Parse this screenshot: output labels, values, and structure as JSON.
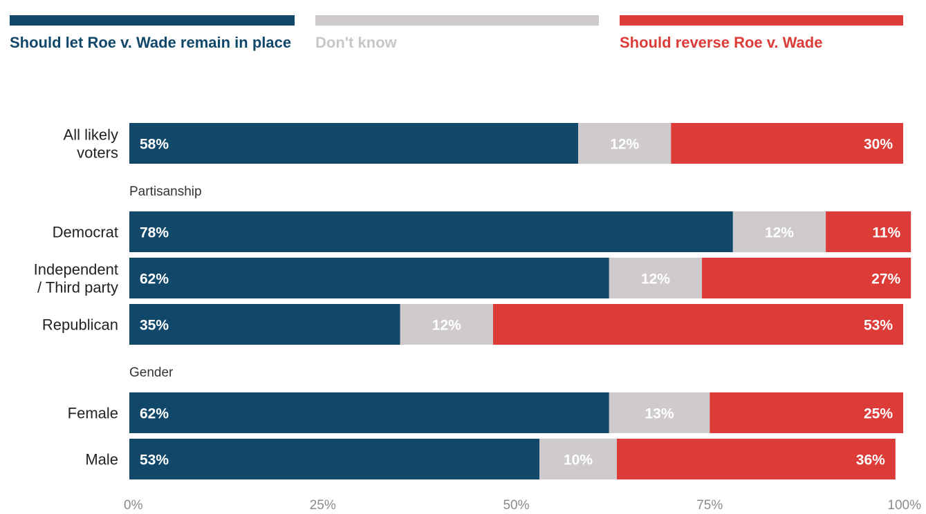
{
  "chart_data": {
    "type": "bar",
    "orientation": "horizontal",
    "stacked": true,
    "normalized_to": "100%",
    "series": [
      {
        "name": "Should let Roe v. Wade remain in place",
        "color": "#11486a",
        "label_color": "#ffffff",
        "values": [
          58,
          78,
          62,
          35,
          62,
          53
        ]
      },
      {
        "name": "Don't know",
        "color": "#cfcbcd",
        "label_color": "#ffffff",
        "values": [
          12,
          12,
          12,
          12,
          13,
          10
        ]
      },
      {
        "name": "Should reverse Roe v. Wade",
        "color": "#dc3b38",
        "label_color": "#ffffff",
        "values": [
          30,
          11,
          27,
          53,
          25,
          36
        ]
      }
    ],
    "rows": [
      {
        "label_lines": [
          "All likely",
          "voters"
        ],
        "group": null
      },
      {
        "label_lines": [
          "Democrat"
        ],
        "group": "Partisanship"
      },
      {
        "label_lines": [
          "Independent",
          "/ Third party"
        ],
        "group": "Partisanship"
      },
      {
        "label_lines": [
          "Republican"
        ],
        "group": "Partisanship"
      },
      {
        "label_lines": [
          "Female"
        ],
        "group": "Gender"
      },
      {
        "label_lines": [
          "Male"
        ],
        "group": "Gender"
      }
    ],
    "groups": [
      "Partisanship",
      "Gender"
    ],
    "value_labels": [
      [
        "58%",
        "12%",
        "30%"
      ],
      [
        "78%",
        "12%",
        "11%"
      ],
      [
        "62%",
        "12%",
        "27%"
      ],
      [
        "35%",
        "12%",
        "53%"
      ],
      [
        "62%",
        "13%",
        "25%"
      ],
      [
        "53%",
        "10%",
        "36%"
      ]
    ],
    "xlim": [
      0,
      100
    ],
    "xticks": [
      0,
      25,
      50,
      75,
      100
    ],
    "xtick_labels": [
      "0%",
      "25%",
      "50%",
      "75%",
      "100%"
    ],
    "legend_position": "top",
    "grid": false
  }
}
